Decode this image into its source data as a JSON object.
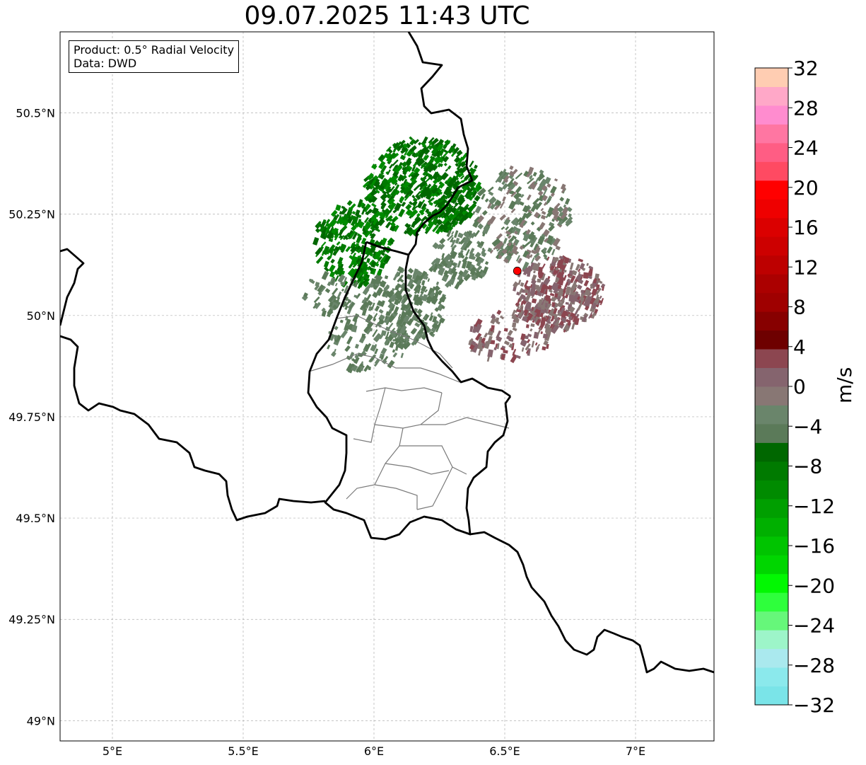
{
  "title": "09.07.2025 11:43 UTC",
  "info": {
    "product": "Product: 0.5° Radial Velocity",
    "source": "Data: DWD"
  },
  "map": {
    "lon_range": [
      4.8,
      7.3
    ],
    "lat_range": [
      48.95,
      50.7
    ],
    "lon_ticks": [
      {
        "value": 5.0,
        "label": "5°E"
      },
      {
        "value": 5.5,
        "label": "5.5°E"
      },
      {
        "value": 6.0,
        "label": "6°E"
      },
      {
        "value": 6.5,
        "label": "6.5°E"
      },
      {
        "value": 7.0,
        "label": "7°E"
      }
    ],
    "lat_ticks": [
      {
        "value": 49.0,
        "label": "49°N"
      },
      {
        "value": 49.25,
        "label": "49.25°N"
      },
      {
        "value": 49.5,
        "label": "49.5°N"
      },
      {
        "value": 49.75,
        "label": "49.75°N"
      },
      {
        "value": 50.0,
        "label": "50°N"
      },
      {
        "value": 50.25,
        "label": "50.25°N"
      },
      {
        "value": 50.5,
        "label": "50.5°N"
      }
    ],
    "radar_site": {
      "lon": 6.548,
      "lat": 50.11,
      "color": "#ff0000"
    },
    "grid": true
  },
  "colorbar": {
    "unit": "m/s",
    "min": -32,
    "max": 32,
    "tick_labels": [
      "32",
      "28",
      "24",
      "20",
      "16",
      "12",
      "8",
      "4",
      "0",
      "−4",
      "−8",
      "−12",
      "−16",
      "−20",
      "−24",
      "−28",
      "−32"
    ],
    "colors": [
      "#7ae4e8",
      "#8be9ec",
      "#aae9ee",
      "#9df5c9",
      "#66f77a",
      "#2eff3c",
      "#02f802",
      "#00d600",
      "#00c400",
      "#00b000",
      "#009f00",
      "#008b00",
      "#007a00",
      "#006700",
      "#5b7a59",
      "#6a856b",
      "#887774",
      "#85646e",
      "#8c4650",
      "#6e0000",
      "#870000",
      "#9f0000",
      "#ab0000",
      "#bd0000",
      "#cd0000",
      "#db0000",
      "#ef0000",
      "#ff0000",
      "#ff4a62",
      "#ff5d84",
      "#ff76a2",
      "#ff8ccf",
      "#ffa8c8",
      "#ffcdb2"
    ]
  }
}
